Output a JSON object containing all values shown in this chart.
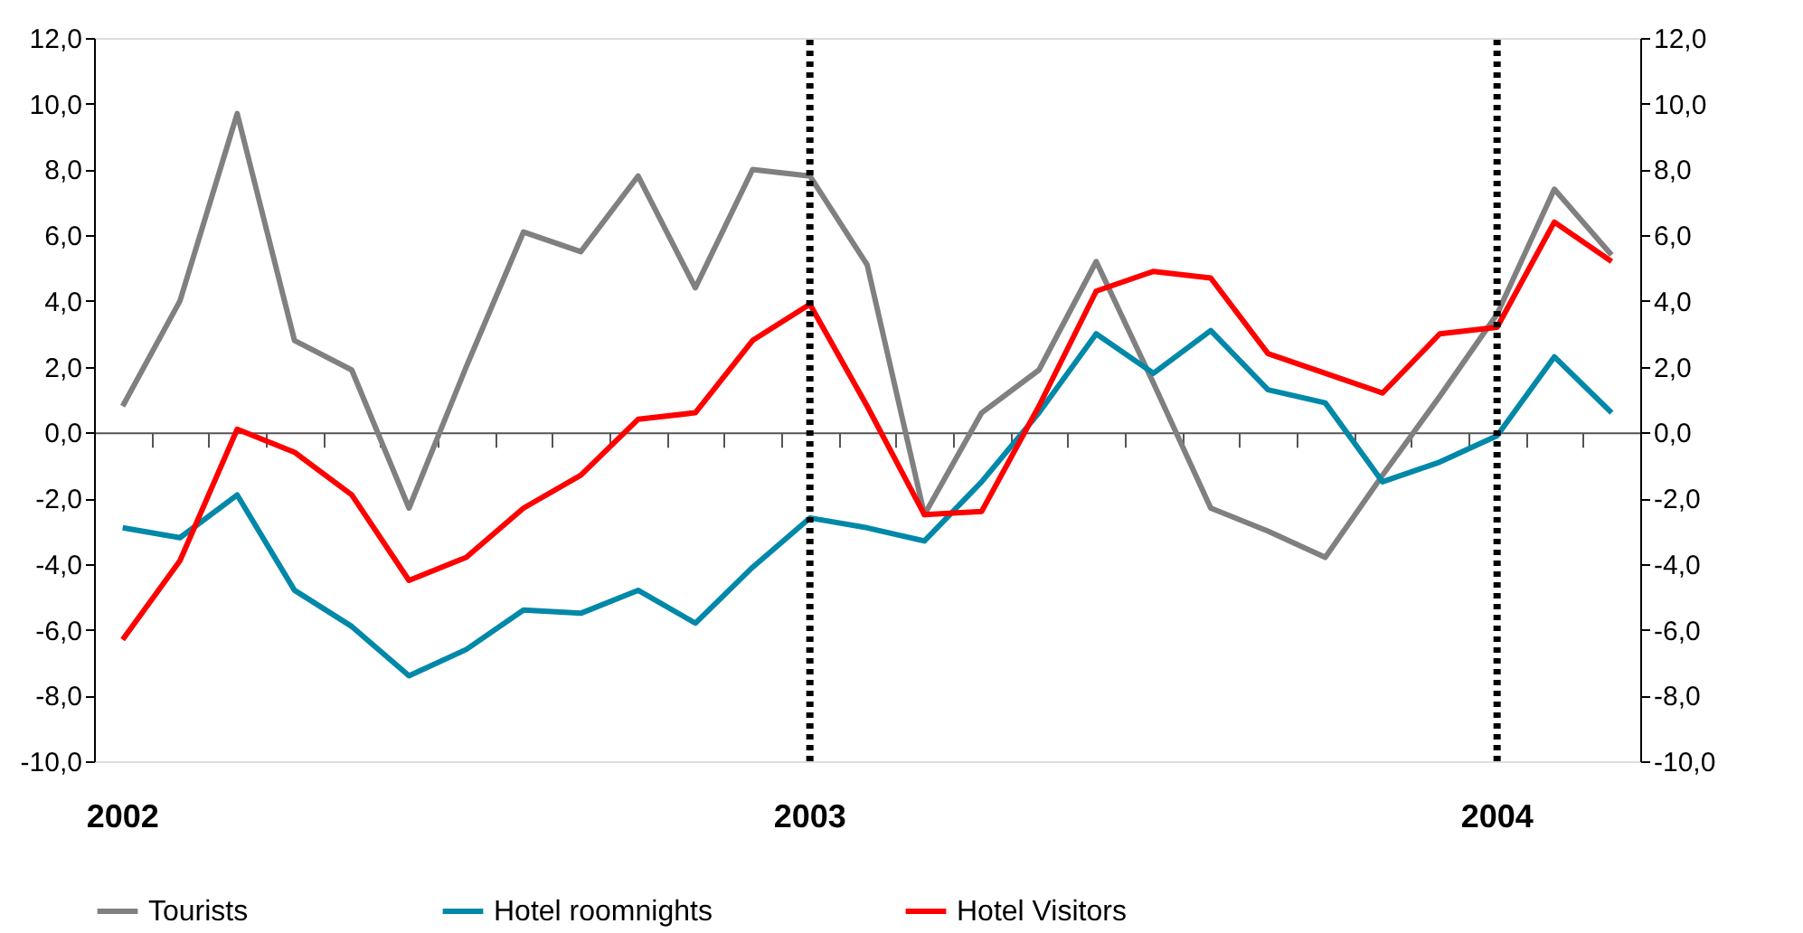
{
  "chart_data": {
    "type": "line",
    "categories": [
      "2002",
      null,
      null,
      null,
      null,
      null,
      null,
      null,
      null,
      null,
      null,
      null,
      "2003",
      null,
      null,
      null,
      null,
      null,
      null,
      null,
      null,
      null,
      null,
      null,
      "2004",
      null,
      null
    ],
    "series": [
      {
        "name": "Tourists",
        "color": "#808080",
        "values": [
          0.8,
          4.0,
          9.7,
          2.8,
          1.9,
          -2.3,
          2.0,
          6.1,
          5.5,
          7.8,
          4.4,
          8.0,
          7.8,
          5.1,
          -2.5,
          0.6,
          1.9,
          5.2,
          1.5,
          -2.3,
          -3.0,
          -3.8,
          -1.3,
          1.1,
          3.6,
          7.4,
          5.4
        ]
      },
      {
        "name": "Hotel roomnights",
        "color": "#0088a8",
        "values": [
          -2.9,
          -3.2,
          -1.9,
          -4.8,
          -5.9,
          -7.4,
          -6.6,
          -5.4,
          -5.5,
          -4.8,
          -5.8,
          -4.1,
          -2.6,
          -2.9,
          -3.3,
          -1.5,
          0.6,
          3.0,
          1.8,
          3.1,
          1.3,
          0.9,
          -1.5,
          -0.9,
          -0.1,
          2.3,
          0.6
        ]
      },
      {
        "name": "Hotel Visitors",
        "color": "#ff0000",
        "values": [
          -6.3,
          -3.9,
          0.1,
          -0.6,
          -1.9,
          -4.5,
          -3.8,
          -2.3,
          -1.3,
          0.4,
          0.6,
          2.8,
          3.9,
          0.8,
          -2.5,
          -2.4,
          0.8,
          4.3,
          4.9,
          4.7,
          2.4,
          1.8,
          1.2,
          3.0,
          3.2,
          6.4,
          5.2
        ]
      }
    ],
    "ylim": [
      -10,
      12
    ],
    "yticks": [
      {
        "value": -10,
        "label": "-10,0"
      },
      {
        "value": -8,
        "label": "-8,0"
      },
      {
        "value": -6,
        "label": "-6,0"
      },
      {
        "value": -4,
        "label": "-4,0"
      },
      {
        "value": -2,
        "label": "-2,0"
      },
      {
        "value": 0,
        "label": "0,0"
      },
      {
        "value": 2,
        "label": "2,0"
      },
      {
        "value": 4,
        "label": "4,0"
      },
      {
        "value": 6,
        "label": "6,0"
      },
      {
        "value": 8,
        "label": "8,0"
      },
      {
        "value": 10,
        "label": "10,0"
      },
      {
        "value": 12,
        "label": "12,0"
      }
    ],
    "y2lim": [
      -10,
      12
    ],
    "y2ticks": [
      {
        "value": -10,
        "label": "-10,0"
      },
      {
        "value": -8,
        "label": "-8,0"
      },
      {
        "value": -6,
        "label": "-6,0"
      },
      {
        "value": -4,
        "label": "-4,0"
      },
      {
        "value": -2,
        "label": "-2,0"
      },
      {
        "value": 0,
        "label": "0,0"
      },
      {
        "value": 2,
        "label": "2,0"
      },
      {
        "value": 4,
        "label": "4,0"
      },
      {
        "value": 6,
        "label": "6,0"
      },
      {
        "value": 8,
        "label": "8,0"
      },
      {
        "value": 10,
        "label": "10,0"
      },
      {
        "value": 12,
        "label": "12,0"
      }
    ],
    "ref_lines": [
      {
        "axis": "x",
        "value": "2003",
        "line_style": "dotted",
        "color": "#000000"
      },
      {
        "axis": "x",
        "value": "2004",
        "line_style": "dotted",
        "color": "#000000"
      }
    ],
    "grid": false,
    "legend": "bottom",
    "marker": "none",
    "line_style": "solid"
  }
}
